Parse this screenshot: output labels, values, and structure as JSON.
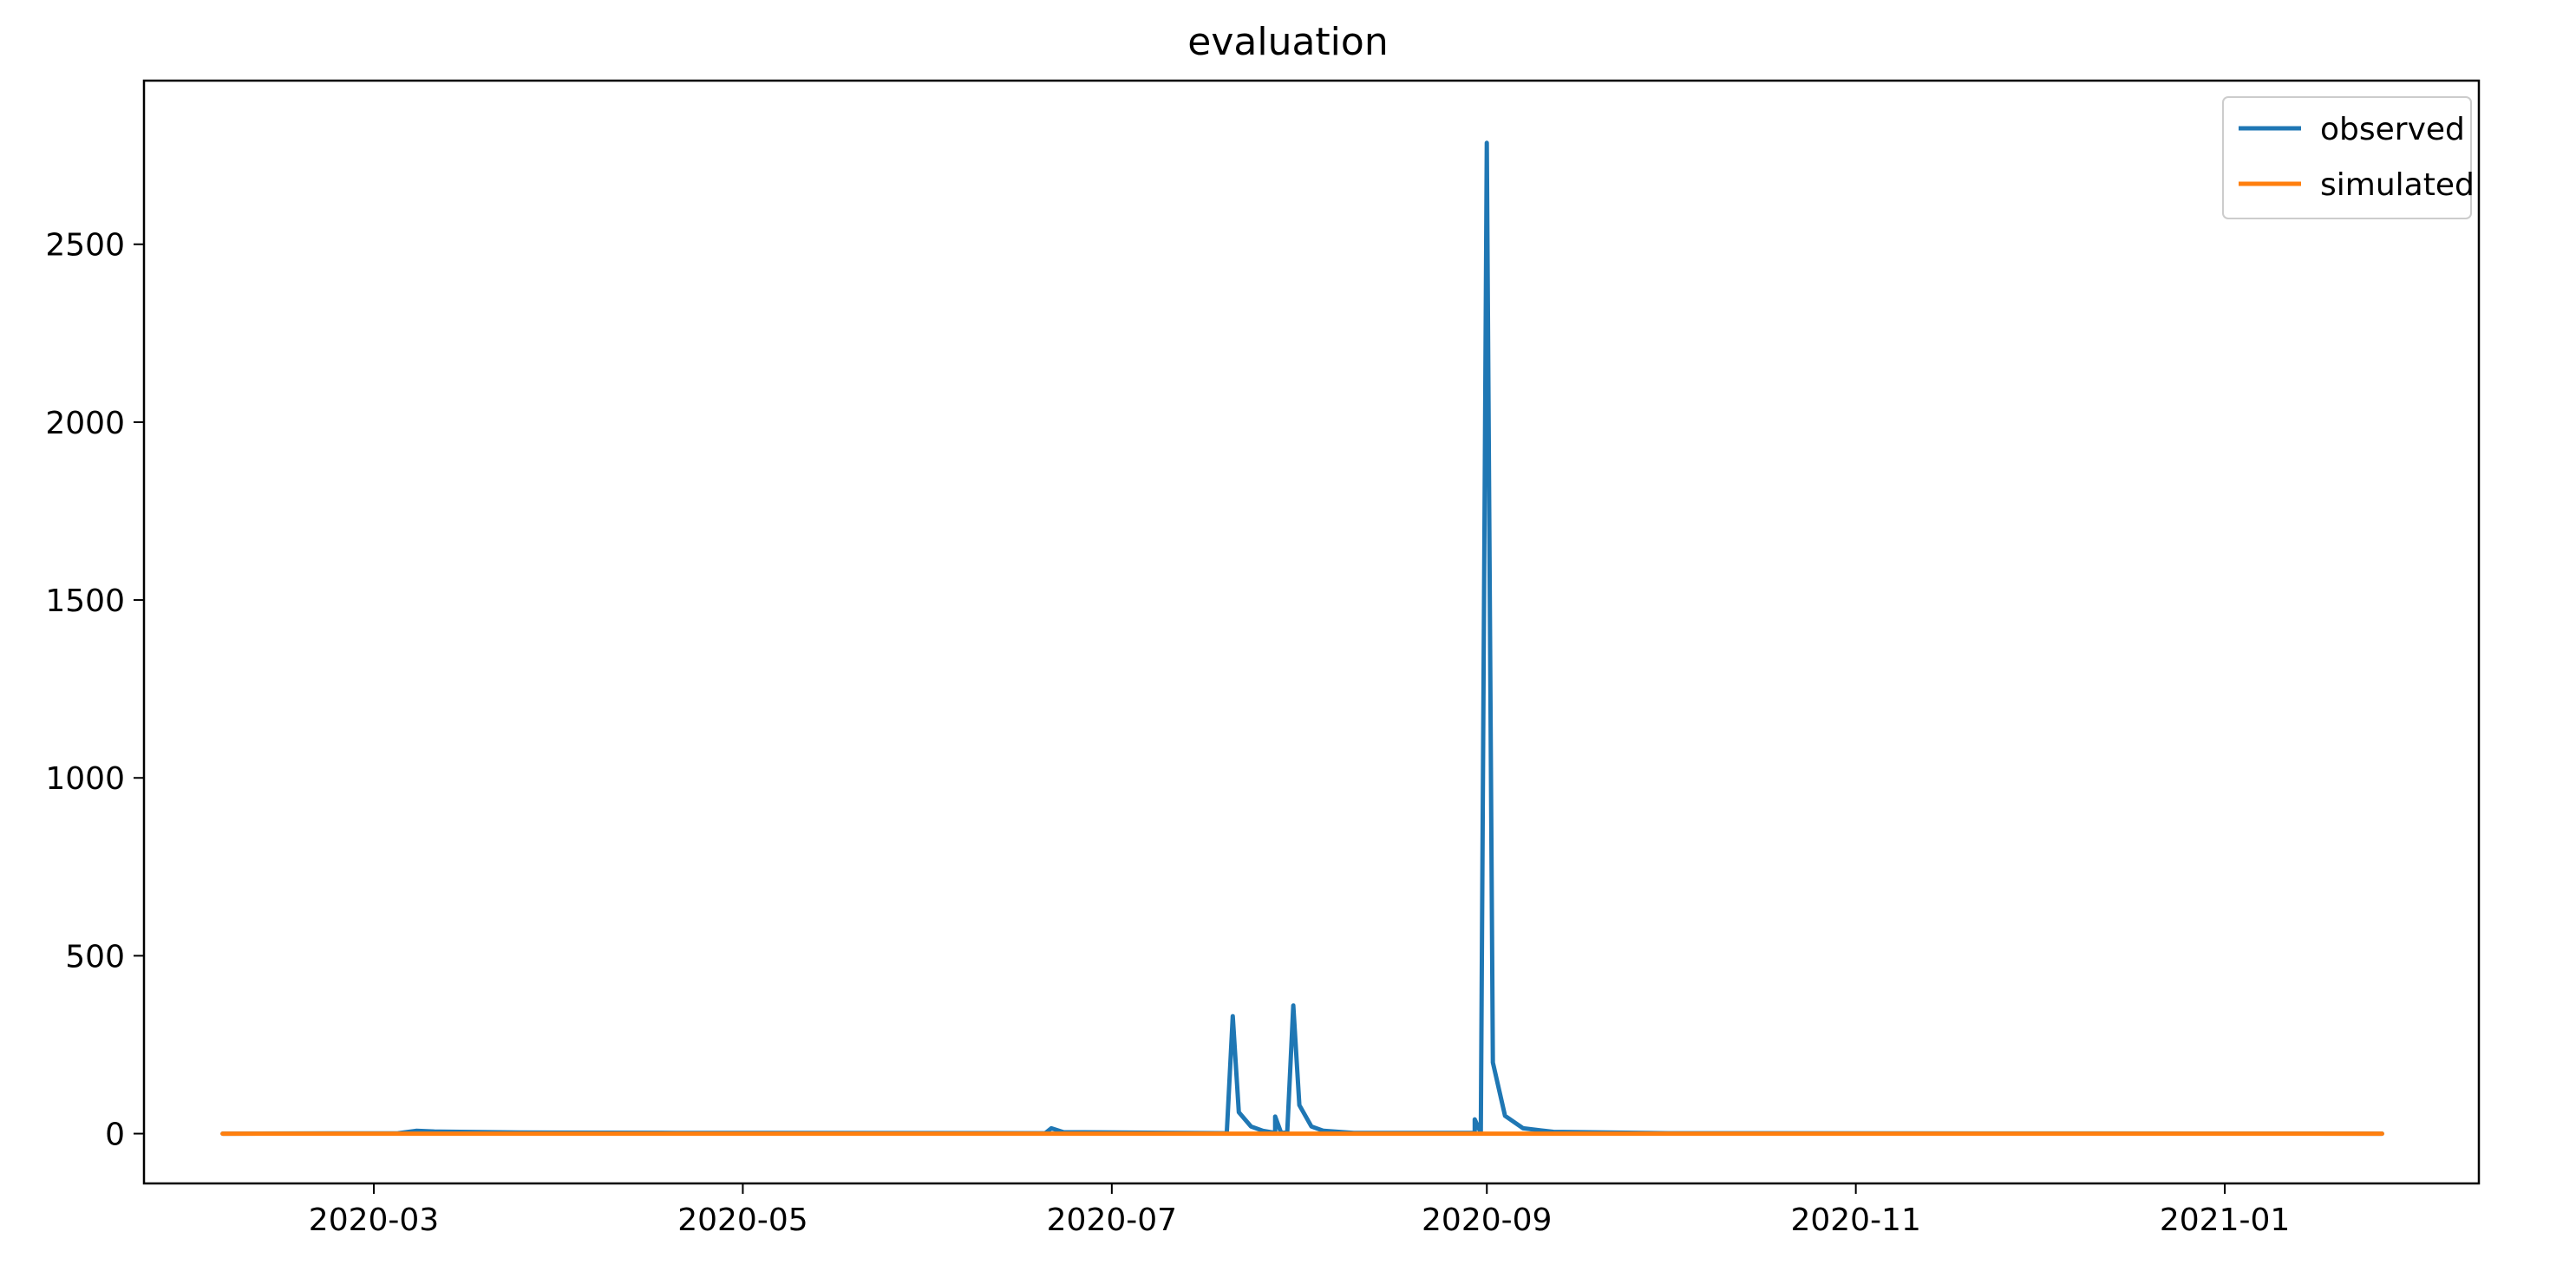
{
  "chart_data": {
    "type": "line",
    "title": "evaluation",
    "xlabel": "",
    "ylabel": "",
    "x_axis": "date",
    "xlim": [
      "2020-01-23",
      "2021-02-12"
    ],
    "ylim": [
      -140,
      2960
    ],
    "x_ticks": [
      "2020-03-01",
      "2020-05-01",
      "2020-07-01",
      "2020-09-01",
      "2020-11-01",
      "2021-01-01"
    ],
    "x_tick_labels": [
      "2020-03",
      "2020-05",
      "2020-07",
      "2020-09",
      "2020-11",
      "2021-01"
    ],
    "y_ticks": [
      0,
      500,
      1000,
      1500,
      2000,
      2500
    ],
    "y_tick_labels": [
      "0",
      "500",
      "1000",
      "1500",
      "2000",
      "2500"
    ],
    "grid": false,
    "legend_position": "top-right",
    "series": [
      {
        "name": "observed",
        "color": "#1f77b4",
        "points": [
          [
            "2020-02-05",
            0
          ],
          [
            "2020-03-05",
            1
          ],
          [
            "2020-03-08",
            8
          ],
          [
            "2020-03-11",
            6
          ],
          [
            "2020-03-25",
            3
          ],
          [
            "2020-04-20",
            2
          ],
          [
            "2020-06-20",
            1
          ],
          [
            "2020-06-21",
            15
          ],
          [
            "2020-06-23",
            4
          ],
          [
            "2020-07-20",
            1
          ],
          [
            "2020-07-21",
            330
          ],
          [
            "2020-07-22",
            60
          ],
          [
            "2020-07-24",
            20
          ],
          [
            "2020-07-26",
            8
          ],
          [
            "2020-07-28",
            2
          ],
          [
            "2020-07-28",
            48
          ],
          [
            "2020-07-29",
            2
          ],
          [
            "2020-07-30",
            3
          ],
          [
            "2020-07-31",
            360
          ],
          [
            "2020-08-01",
            80
          ],
          [
            "2020-08-03",
            20
          ],
          [
            "2020-08-05",
            8
          ],
          [
            "2020-08-10",
            2
          ],
          [
            "2020-08-30",
            2
          ],
          [
            "2020-08-30",
            40
          ],
          [
            "2020-08-31",
            2
          ],
          [
            "2020-09-01",
            2785
          ],
          [
            "2020-09-02",
            200
          ],
          [
            "2020-09-04",
            50
          ],
          [
            "2020-09-07",
            15
          ],
          [
            "2020-09-12",
            5
          ],
          [
            "2020-10-01",
            1
          ],
          [
            "2021-01-27",
            0
          ]
        ]
      },
      {
        "name": "simulated",
        "color": "#ff7f0e",
        "points": [
          [
            "2020-02-05",
            0
          ],
          [
            "2021-01-27",
            0
          ]
        ]
      }
    ]
  }
}
